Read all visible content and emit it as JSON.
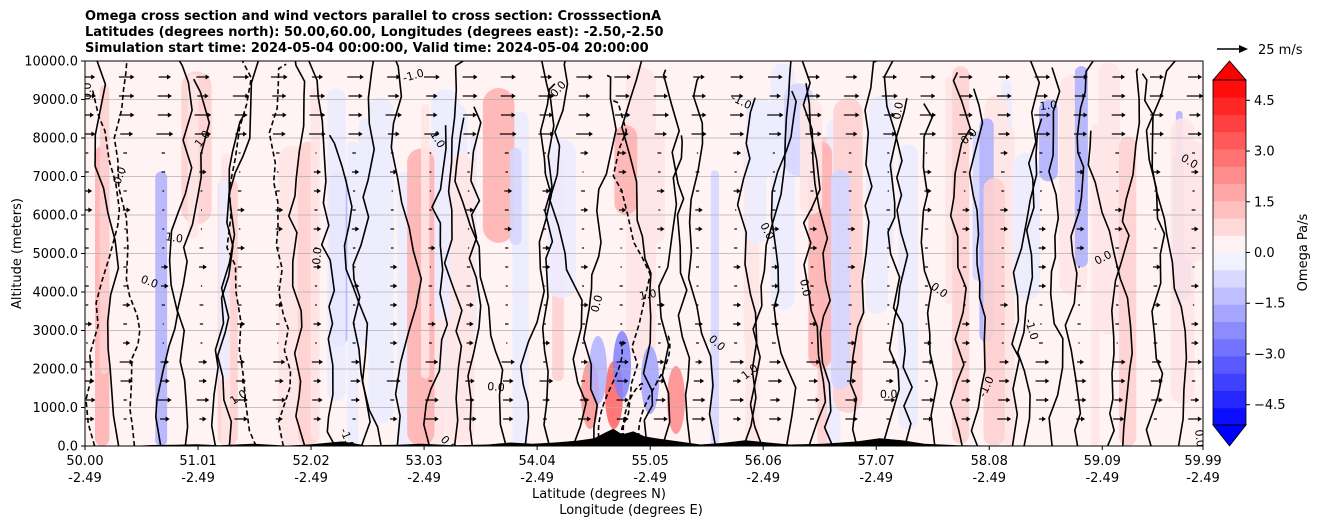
{
  "chart_data": {
    "type": "contour",
    "title_lines": [
      "Omega cross section and wind vectors parallel to cross section: CrosssectionA",
      "Latitudes (degrees north): 50.00,60.00, Longitudes (degrees east): -2.50,-2.50",
      "Simulation start time: 2024-05-04 00:00:00, Valid time: 2024-05-04 20:00:00"
    ],
    "ylabel": "Altitude (meters)",
    "xlabel_lat": "Latitude (degrees N)",
    "xlabel_lon": "Longitude (degrees E)",
    "ylim": [
      0,
      10000
    ],
    "y_ticks": [
      "0.0",
      "1000.0",
      "2000.0",
      "3000.0",
      "4000.0",
      "5000.0",
      "6000.0",
      "7000.0",
      "8000.0",
      "9000.0",
      "10000.0"
    ],
    "y_tick_values": [
      0,
      1000,
      2000,
      3000,
      4000,
      5000,
      6000,
      7000,
      8000,
      9000,
      10000
    ],
    "x_range": [
      50.0,
      59.99
    ],
    "x_ticks_lat": [
      "50.00",
      "51.01",
      "52.02",
      "53.03",
      "54.04",
      "55.05",
      "56.06",
      "57.07",
      "58.08",
      "59.09",
      "59.99"
    ],
    "x_ticks_lon": [
      "-2.49",
      "-2.49",
      "-2.49",
      "-2.49",
      "-2.49",
      "-2.49",
      "-2.49",
      "-2.49",
      "-2.49",
      "-2.49",
      "-2.49"
    ],
    "x_tick_values": [
      50.0,
      51.01,
      52.02,
      53.03,
      54.04,
      55.05,
      56.06,
      57.07,
      58.08,
      59.09,
      59.99
    ],
    "grid": "horizontal",
    "colorbar": {
      "label": "Omega Pa/s",
      "ticks": [
        "4.5",
        "3.0",
        "1.5",
        "0.0",
        "−1.5",
        "−3.0",
        "−4.5"
      ],
      "tick_values": [
        4.5,
        3.0,
        1.5,
        0.0,
        -1.5,
        -3.0,
        -4.5
      ],
      "range": [
        -5.1,
        5.1
      ],
      "extend": "both",
      "colormap": "bwr"
    },
    "contour_levels": [
      -1.0,
      0.0,
      1.0
    ],
    "contour_labels": [
      "0.0",
      "1.0",
      "-1.0",
      "0.0",
      "1.0",
      "0.0",
      "0.0",
      "1.0",
      "-1.0",
      "0.0",
      "0.0",
      "0.0",
      "1.0",
      "0.0",
      "-1.0",
      "0.0",
      "1.0",
      "0.0",
      "0.0",
      "-1.0",
      "0.0",
      "1.0",
      "0.0",
      "0.0",
      "0.0",
      "-1.0",
      "0.0",
      "1.0",
      "0.0",
      "0.0"
    ],
    "quiver_key": {
      "label": "25 m/s",
      "value": 25
    }
  }
}
